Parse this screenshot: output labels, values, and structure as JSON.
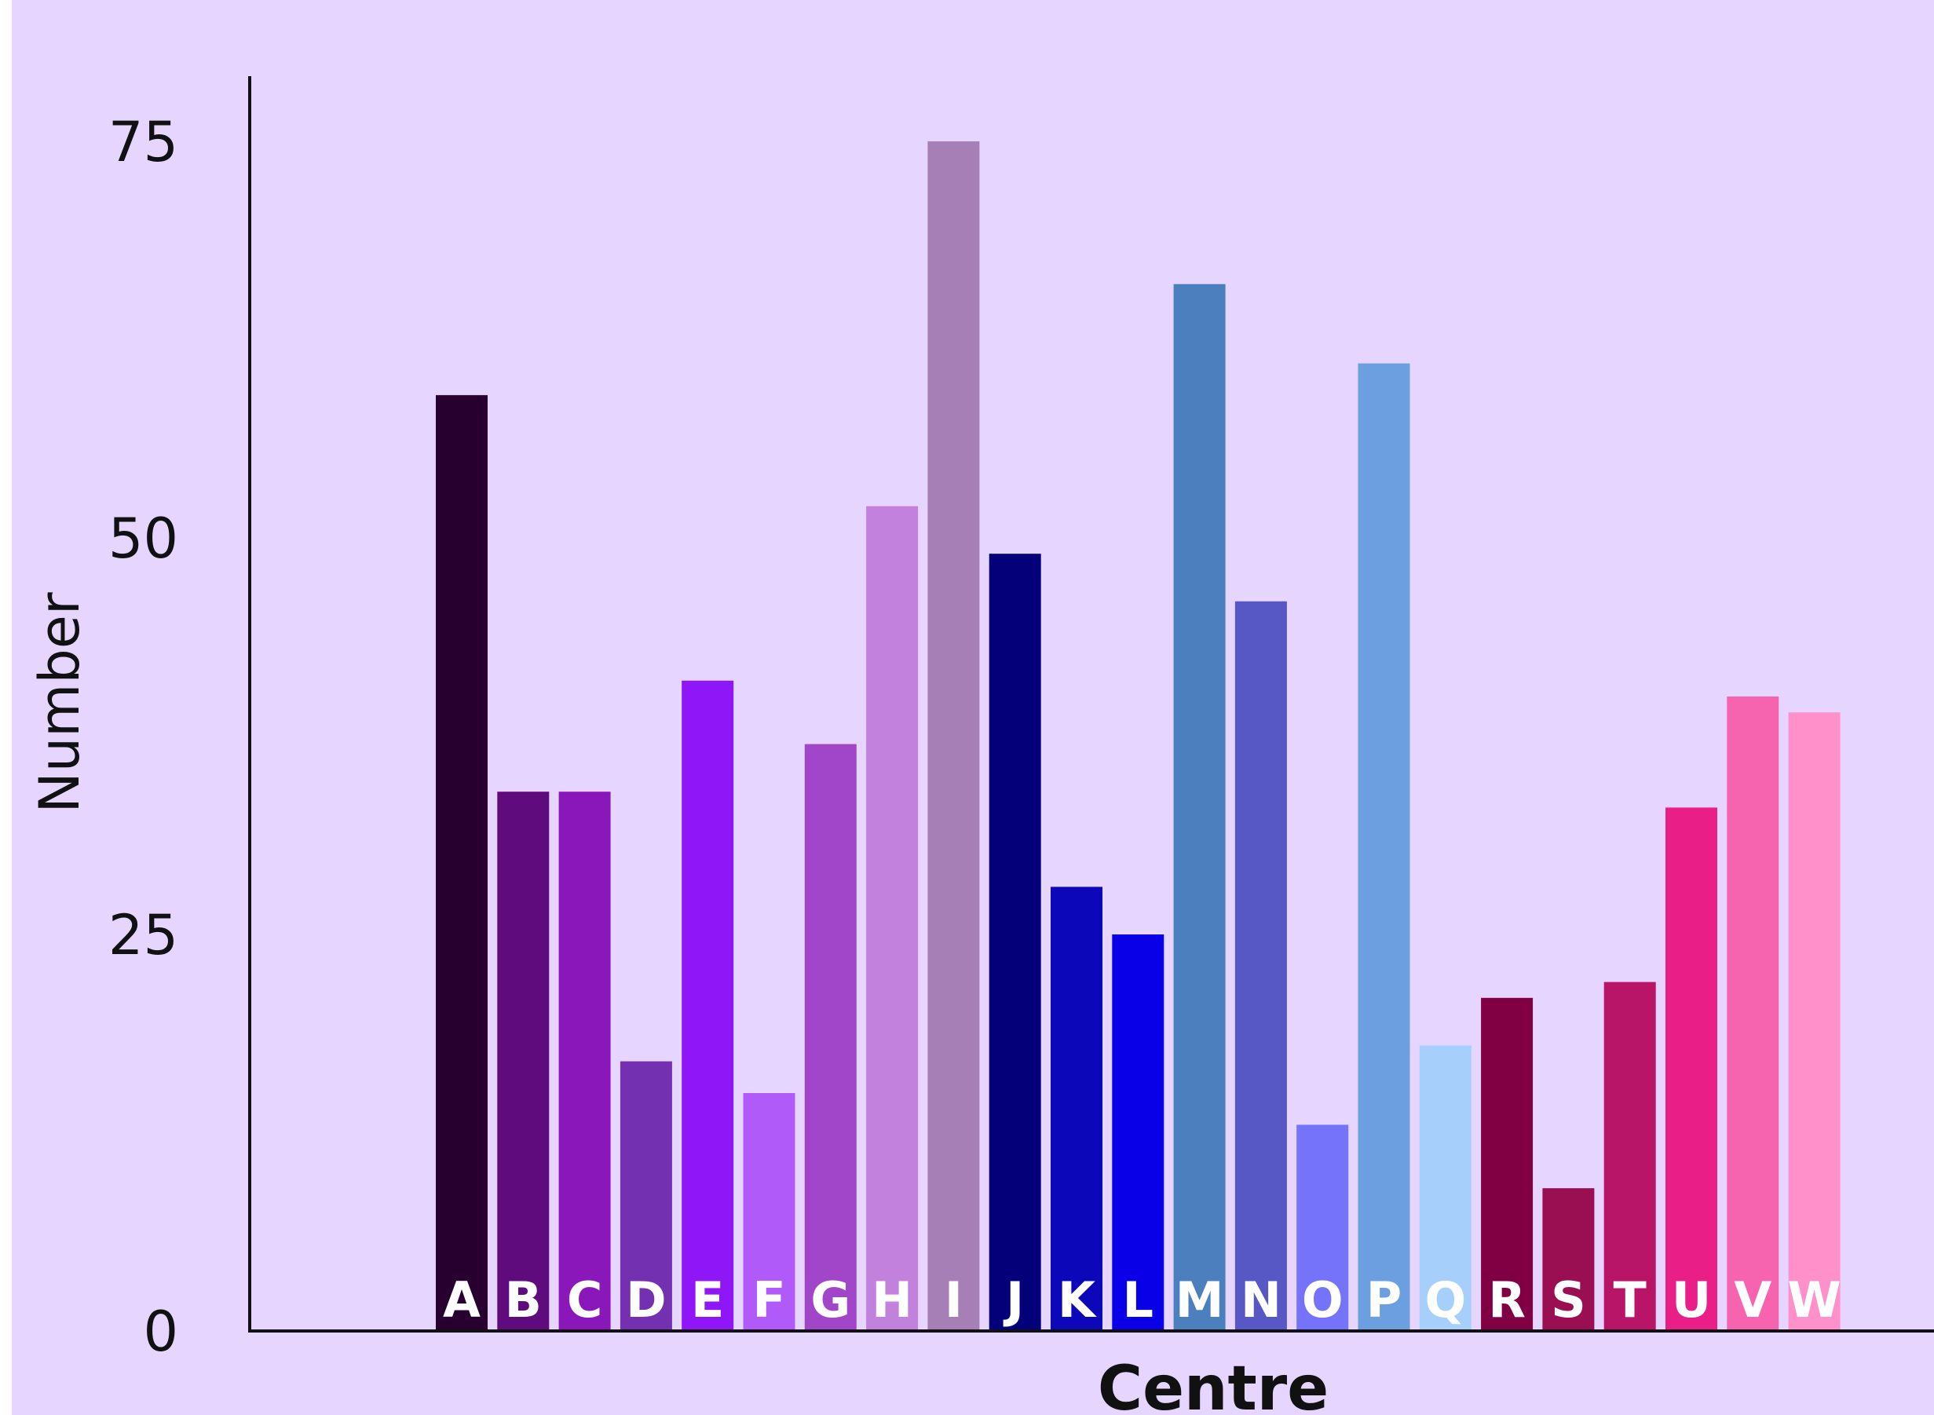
{
  "chart_data": {
    "type": "bar",
    "title": "",
    "xlabel": "Centre",
    "ylabel": "Number",
    "ylim": [
      0,
      79
    ],
    "yticks": [
      0,
      25,
      50,
      75
    ],
    "grid": false,
    "legend": "none",
    "categories": [
      "A",
      "B",
      "C",
      "D",
      "E",
      "F",
      "G",
      "H",
      "I",
      "J",
      "K",
      "L",
      "M",
      "N",
      "O",
      "P",
      "Q",
      "R",
      "S",
      "T",
      "U",
      "V",
      "W"
    ],
    "values": [
      59,
      34,
      34,
      17,
      41,
      15,
      37,
      52,
      75,
      49,
      28,
      25,
      66,
      46,
      13,
      61,
      18,
      21,
      9,
      22,
      33,
      40,
      39
    ],
    "colors": [
      "#280030",
      "#5f0b7d",
      "#8a17b9",
      "#7330b0",
      "#8f17f7",
      "#b05afa",
      "#a246c9",
      "#c381de",
      "#a57fb5",
      "#040079",
      "#0c08b9",
      "#0a00e8",
      "#4c7fbe",
      "#5757c6",
      "#7473fa",
      "#6c9fdf",
      "#a7cffc",
      "#810043",
      "#9a0e52",
      "#b81468",
      "#e91e87",
      "#f664b0",
      "#ff90c9"
    ]
  }
}
